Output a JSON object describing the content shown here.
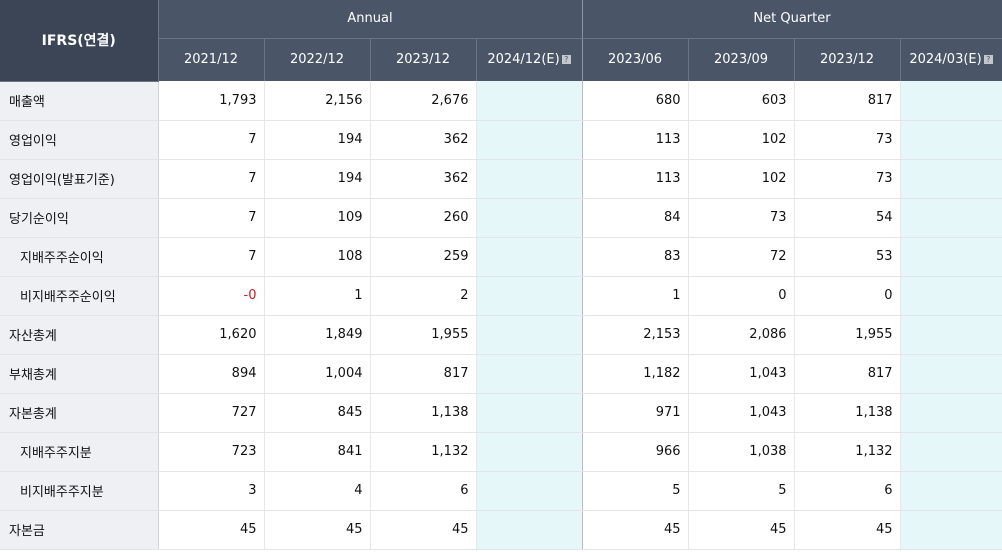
{
  "header": {
    "corner_label": "IFRS(연결)",
    "annual_label": "Annual",
    "quarter_label": "Net Quarter",
    "estimate_icon": "info-icon",
    "columns": [
      "2021/12",
      "2022/12",
      "2023/12",
      "2024/12(E)",
      "2023/06",
      "2023/09",
      "2023/12",
      "2024/03(E)"
    ]
  },
  "rows": [
    {
      "label": "매출액",
      "values": [
        "1,793",
        "2,156",
        "2,676",
        "",
        "680",
        "603",
        "817",
        ""
      ]
    },
    {
      "label": "영업이익",
      "values": [
        "7",
        "194",
        "362",
        "",
        "113",
        "102",
        "73",
        ""
      ]
    },
    {
      "label": "영업이익(발표기준)",
      "values": [
        "7",
        "194",
        "362",
        "",
        "113",
        "102",
        "73",
        ""
      ]
    },
    {
      "label": "당기순이익",
      "values": [
        "7",
        "109",
        "260",
        "",
        "84",
        "73",
        "54",
        ""
      ]
    },
    {
      "label": "지배주주순이익",
      "values": [
        "7",
        "108",
        "259",
        "",
        "83",
        "72",
        "53",
        ""
      ]
    },
    {
      "label": "비지배주주순이익",
      "values": [
        "-0",
        "1",
        "2",
        "",
        "1",
        "0",
        "0",
        ""
      ]
    },
    {
      "label": "자산총계",
      "values": [
        "1,620",
        "1,849",
        "1,955",
        "",
        "2,153",
        "2,086",
        "1,955",
        ""
      ]
    },
    {
      "label": "부채총계",
      "values": [
        "894",
        "1,004",
        "817",
        "",
        "1,182",
        "1,043",
        "817",
        ""
      ]
    },
    {
      "label": "자본총계",
      "values": [
        "727",
        "845",
        "1,138",
        "",
        "971",
        "1,043",
        "1,138",
        ""
      ]
    },
    {
      "label": "지배주주지분",
      "values": [
        "723",
        "841",
        "1,132",
        "",
        "966",
        "1,038",
        "1,132",
        ""
      ]
    },
    {
      "label": "비지배주주지분",
      "values": [
        "3",
        "4",
        "6",
        "",
        "5",
        "5",
        "6",
        ""
      ]
    },
    {
      "label": "자본금",
      "values": [
        "45",
        "45",
        "45",
        "",
        "45",
        "45",
        "45",
        ""
      ]
    }
  ],
  "colors": {
    "header_bg": "#4a5568",
    "corner_bg": "#3b4556",
    "label_bg": "#eef0f4",
    "estimate_bg": "#e6f7fa",
    "negative_text": "#d61a1a"
  }
}
